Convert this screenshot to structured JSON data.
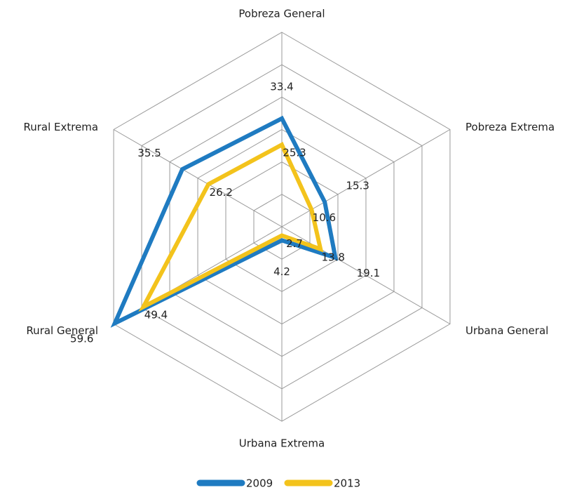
{
  "chart_data": {
    "type": "radar",
    "categories": [
      "Pobreza General",
      "Pobreza Extrema",
      "Urbana General",
      "Urbana Extrema",
      "Rural General",
      "Rural Extrema"
    ],
    "series": [
      {
        "name": "2009",
        "color": "#1f7bc1",
        "values": [
          33.4,
          15.3,
          19.1,
          4.2,
          59.6,
          35.5
        ]
      },
      {
        "name": "2013",
        "color": "#f3c31c",
        "values": [
          25.3,
          10.6,
          13.8,
          2.7,
          49.4,
          26.2
        ]
      }
    ],
    "rlim": [
      0,
      60
    ],
    "rticks": [
      10,
      20,
      30,
      40,
      50,
      60
    ],
    "grid": true,
    "legend": "bottom"
  }
}
